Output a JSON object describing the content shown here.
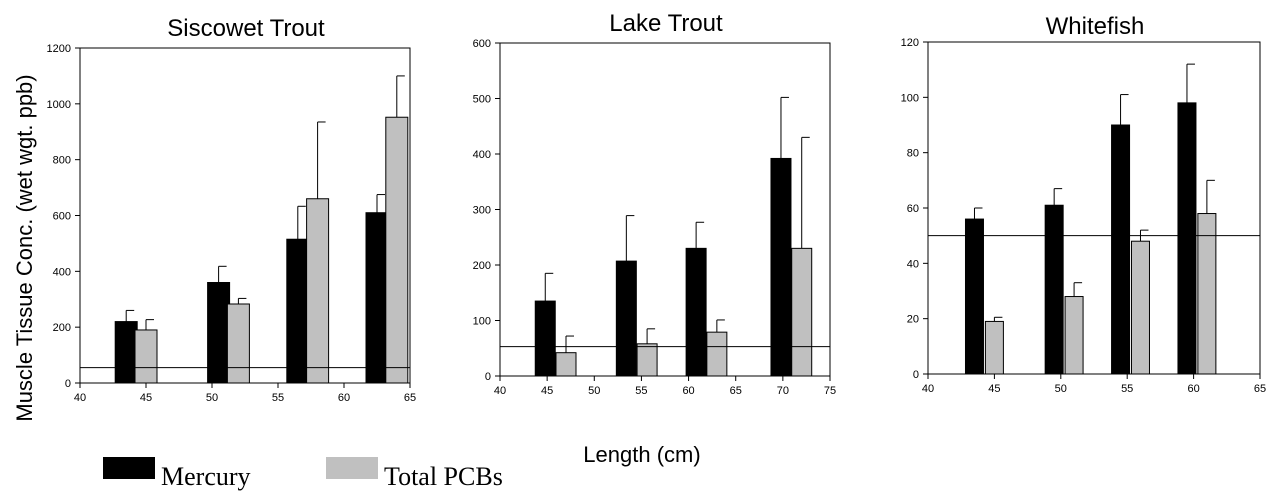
{
  "figure": {
    "ylabel": "Muscle Tissue Conc. (wet wgt. ppb)",
    "xlabel": "Length (cm)"
  },
  "legend": {
    "items": [
      {
        "label": "Mercury",
        "color": "#000000"
      },
      {
        "label": "Total PCBs",
        "color": "#c0c0c0"
      }
    ]
  },
  "chart_data": [
    {
      "type": "bar",
      "title": "Siscowet Trout",
      "xlim": [
        40,
        65
      ],
      "ylim": [
        0,
        1200
      ],
      "xticks": [
        40,
        45,
        50,
        55,
        60,
        65
      ],
      "yticks": [
        0,
        200,
        400,
        600,
        800,
        1000,
        1200
      ],
      "reference_line": 55,
      "series": [
        {
          "name": "Mercury",
          "color": "#000000",
          "points": [
            {
              "x": 43.5,
              "y": 220,
              "err": 40
            },
            {
              "x": 50.5,
              "y": 360,
              "err": 58
            },
            {
              "x": 56.5,
              "y": 515,
              "err": 118
            },
            {
              "x": 62.5,
              "y": 610,
              "err": 65
            }
          ]
        },
        {
          "name": "Total PCBs",
          "color": "#c0c0c0",
          "points": [
            {
              "x": 45.0,
              "y": 190,
              "err": 37
            },
            {
              "x": 52.0,
              "y": 283,
              "err": 20
            },
            {
              "x": 58.0,
              "y": 660,
              "err": 275
            },
            {
              "x": 64.0,
              "y": 952,
              "err": 148
            }
          ]
        }
      ]
    },
    {
      "type": "bar",
      "title": "Lake Trout",
      "xlim": [
        40,
        75
      ],
      "ylim": [
        0,
        600
      ],
      "xticks": [
        40,
        45,
        50,
        55,
        60,
        65,
        70,
        75
      ],
      "yticks": [
        0,
        100,
        200,
        300,
        400,
        500,
        600
      ],
      "reference_line": 53,
      "series": [
        {
          "name": "Mercury",
          "color": "#000000",
          "points": [
            {
              "x": 44.8,
              "y": 135,
              "err": 50
            },
            {
              "x": 53.4,
              "y": 207,
              "err": 82
            },
            {
              "x": 60.8,
              "y": 230,
              "err": 47
            },
            {
              "x": 69.8,
              "y": 392,
              "err": 110
            }
          ]
        },
        {
          "name": "Total PCBs",
          "color": "#c0c0c0",
          "points": [
            {
              "x": 47.0,
              "y": 42,
              "err": 30
            },
            {
              "x": 55.6,
              "y": 58,
              "err": 27
            },
            {
              "x": 63.0,
              "y": 79,
              "err": 22
            },
            {
              "x": 72.0,
              "y": 230,
              "err": 200
            }
          ]
        }
      ]
    },
    {
      "type": "bar",
      "title": "Whitefish",
      "xlim": [
        40,
        65
      ],
      "ylim": [
        0,
        120
      ],
      "xticks": [
        40,
        45,
        50,
        55,
        60,
        65
      ],
      "yticks": [
        0,
        20,
        40,
        60,
        80,
        100,
        120
      ],
      "reference_line": 50,
      "series": [
        {
          "name": "Mercury",
          "color": "#000000",
          "points": [
            {
              "x": 43.5,
              "y": 56,
              "err": 4
            },
            {
              "x": 49.5,
              "y": 61,
              "err": 6
            },
            {
              "x": 54.5,
              "y": 90,
              "err": 11
            },
            {
              "x": 59.5,
              "y": 98,
              "err": 14
            }
          ]
        },
        {
          "name": "Total PCBs",
          "color": "#c0c0c0",
          "points": [
            {
              "x": 45.0,
              "y": 19,
              "err": 1.5
            },
            {
              "x": 51.0,
              "y": 28,
              "err": 5
            },
            {
              "x": 56.0,
              "y": 48,
              "err": 4
            },
            {
              "x": 61.0,
              "y": 58,
              "err": 12
            }
          ]
        }
      ]
    }
  ]
}
